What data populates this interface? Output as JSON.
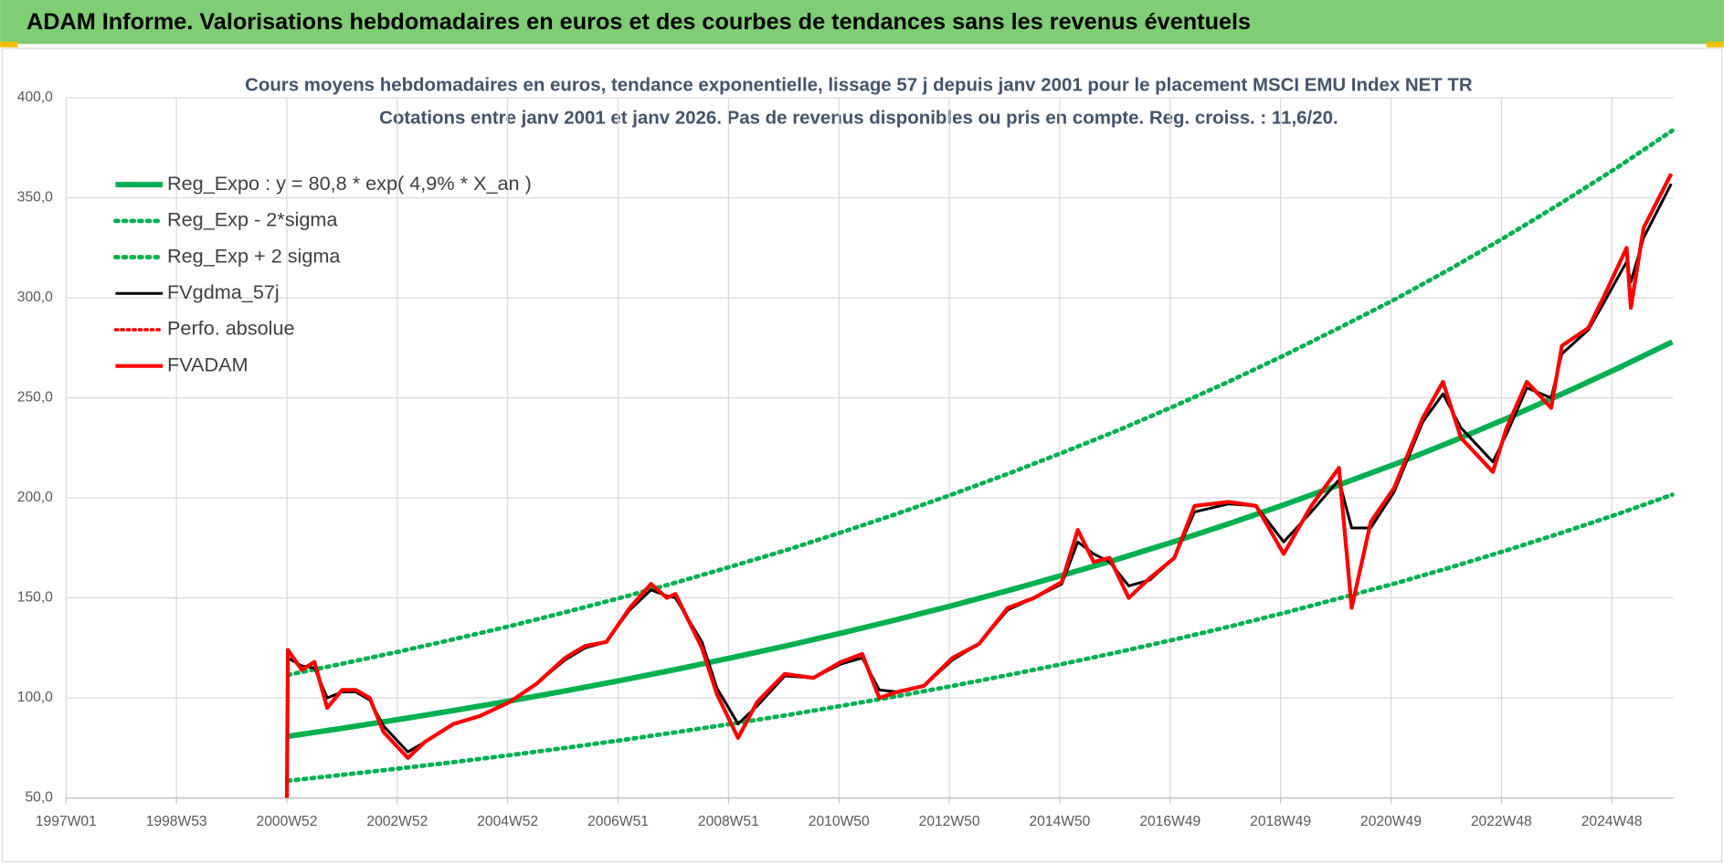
{
  "header": {
    "title": "ADAM Informe. Valorisations hebdomadaires en euros et des courbes de tendances sans les revenus éventuels"
  },
  "chart_data": {
    "type": "line",
    "title": "Cours moyens hebdomadaires en euros, tendance exponentielle, lissage 57 j depuis janv 2001 pour le placement MSCI EMU Index NET TR",
    "subtitle": "Cotations entre janv 2001 et janv 2026. Pas de revenus disponibles ou pris en compte. Reg. croiss. : 11,6/20.",
    "xlim": [
      "1997W01",
      "2026W02"
    ],
    "xticks": [
      "1997W01",
      "1998W53",
      "2000W52",
      "2002W52",
      "2004W52",
      "2006W51",
      "2008W51",
      "2010W50",
      "2012W50",
      "2014W50",
      "2016W49",
      "2018W49",
      "2020W49",
      "2022W48",
      "2024W48"
    ],
    "ylim": [
      50,
      400
    ],
    "yticks": [
      {
        "value": 50,
        "label": "50,0"
      },
      {
        "value": 100,
        "label": "100,0"
      },
      {
        "value": 150,
        "label": "150,0"
      },
      {
        "value": 200,
        "label": "200,0"
      },
      {
        "value": 250,
        "label": "250,0"
      },
      {
        "value": 300,
        "label": "300,0"
      },
      {
        "value": 350,
        "label": "350,0"
      },
      {
        "value": 400,
        "label": "400,0"
      }
    ],
    "grid": true,
    "legend": "upper-left",
    "series": [
      {
        "name": "Reg_Expo : y = 80,8 * exp( 4,9% *  X_an )",
        "color": "#00b050",
        "dash": "solid",
        "width": 5,
        "x": [
          "2001W01",
          "2002W01",
          "2003W01",
          "2004W01",
          "2005W01",
          "2006W01",
          "2007W01",
          "2008W01",
          "2009W01",
          "2010W01",
          "2011W01",
          "2012W01",
          "2013W01",
          "2014W01",
          "2015W01",
          "2016W01",
          "2017W01",
          "2018W01",
          "2019W01",
          "2020W01",
          "2021W01",
          "2022W01",
          "2023W01",
          "2024W01",
          "2025W01",
          "2026W01"
        ],
        "values": [
          80.8,
          84.9,
          89.2,
          93.7,
          98.5,
          103.5,
          108.7,
          114.2,
          120.0,
          126.1,
          132.5,
          139.2,
          146.2,
          153.6,
          161.4,
          169.6,
          178.2,
          187.2,
          196.7,
          206.7,
          217.1,
          228.1,
          239.7,
          251.9,
          264.6,
          278.0
        ]
      },
      {
        "name": "Reg_Exp - 2*sigma",
        "color": "#00b050",
        "dash": "dotted",
        "width": 4,
        "x": [
          "2001W01",
          "2002W01",
          "2003W01",
          "2004W01",
          "2005W01",
          "2006W01",
          "2007W01",
          "2008W01",
          "2009W01",
          "2010W01",
          "2011W01",
          "2012W01",
          "2013W01",
          "2014W01",
          "2015W01",
          "2016W01",
          "2017W01",
          "2018W01",
          "2019W01",
          "2020W01",
          "2021W01",
          "2022W01",
          "2023W01",
          "2024W01",
          "2025W01",
          "2026W01"
        ],
        "values": [
          58.6,
          61.6,
          64.7,
          67.9,
          71.4,
          75.0,
          78.8,
          82.8,
          87.0,
          91.4,
          96.1,
          100.9,
          106.0,
          111.4,
          117.0,
          123.0,
          129.2,
          135.7,
          142.6,
          149.9,
          157.4,
          165.4,
          173.8,
          182.6,
          191.8,
          201.6
        ]
      },
      {
        "name": "Reg_Exp + 2 sigma",
        "color": "#00b050",
        "dash": "dotted",
        "width": 4,
        "x": [
          "2001W01",
          "2002W01",
          "2003W01",
          "2004W01",
          "2005W01",
          "2006W01",
          "2007W01",
          "2008W01",
          "2009W01",
          "2010W01",
          "2011W01",
          "2012W01",
          "2013W01",
          "2014W01",
          "2015W01",
          "2016W01",
          "2017W01",
          "2018W01",
          "2019W01",
          "2020W01",
          "2021W01",
          "2022W01",
          "2023W01",
          "2024W01",
          "2025W01",
          "2026W01"
        ],
        "values": [
          111.5,
          117.2,
          123.1,
          129.3,
          135.9,
          142.8,
          150.0,
          157.6,
          165.6,
          174.0,
          182.9,
          192.1,
          201.8,
          212.0,
          222.7,
          234.0,
          245.9,
          258.3,
          271.4,
          285.2,
          299.6,
          314.8,
          330.8,
          347.6,
          365.1,
          383.6
        ]
      },
      {
        "name": "FVgdma_57j",
        "color": "#000000",
        "dash": "solid",
        "width": 2.5,
        "x": [
          "2001W01",
          "2001W14",
          "2001W26",
          "2001W38",
          "2001W52",
          "2002W13",
          "2002W26",
          "2002W39",
          "2003W10",
          "2003W26",
          "2004W01",
          "2004W26",
          "2005W01",
          "2005W26",
          "2006W01",
          "2006W20",
          "2006W40",
          "2007W10",
          "2007W30",
          "2007W45",
          "2008W01",
          "2008W26",
          "2008W40",
          "2009W08",
          "2009W26",
          "2009W52",
          "2010W26",
          "2010W52",
          "2011W20",
          "2011W36",
          "2012W01",
          "2012W26",
          "2013W01",
          "2013W26",
          "2014W01",
          "2014W26",
          "2014W52",
          "2015W15",
          "2015W30",
          "2015W45",
          "2016W10",
          "2016W30",
          "2017W01",
          "2017W20",
          "2017W52",
          "2018W26",
          "2018W52",
          "2019W26",
          "2019W52",
          "2020W12",
          "2020W30",
          "2020W52",
          "2021W26",
          "2021W45",
          "2022W10",
          "2022W40",
          "2023W01",
          "2023W20",
          "2023W43",
          "2024W01",
          "2024W26",
          "2024W40",
          "2025W10",
          "2025W14",
          "2025W26",
          "2025W52"
        ],
        "values": [
          120,
          116,
          115,
          100,
          103,
          103,
          99,
          86,
          73,
          78,
          87,
          91,
          98,
          107,
          119,
          125,
          128,
          144,
          154,
          151,
          150,
          128,
          105,
          87,
          96,
          111,
          110,
          117,
          120,
          104,
          103,
          106,
          119,
          127,
          144,
          150,
          157,
          178,
          172,
          168,
          156,
          159,
          170,
          193,
          197,
          196,
          178,
          193,
          209,
          185,
          185,
          203,
          238,
          252,
          235,
          218,
          232,
          255,
          250,
          272,
          284,
          297,
          318,
          308,
          330,
          357
        ]
      },
      {
        "name": "Perfo. absolue",
        "color": "#ff0000",
        "dash": "dotted",
        "width": 3
      },
      {
        "name": "FVADAM",
        "color": "#ff0000",
        "dash": "solid",
        "width": 3.5,
        "x": [
          "2000W52",
          "2001W01",
          "2001W14",
          "2001W26",
          "2001W38",
          "2001W52",
          "2002W13",
          "2002W26",
          "2002W39",
          "2003W10",
          "2003W26",
          "2004W01",
          "2004W26",
          "2005W01",
          "2005W26",
          "2006W01",
          "2006W20",
          "2006W40",
          "2007W10",
          "2007W30",
          "2007W45",
          "2008W01",
          "2008W26",
          "2008W40",
          "2009W08",
          "2009W26",
          "2009W52",
          "2010W26",
          "2010W52",
          "2011W20",
          "2011W36",
          "2012W01",
          "2012W26",
          "2013W01",
          "2013W26",
          "2014W01",
          "2014W26",
          "2014W52",
          "2015W15",
          "2015W30",
          "2015W45",
          "2016W10",
          "2016W30",
          "2017W01",
          "2017W20",
          "2017W52",
          "2018W26",
          "2018W52",
          "2019W26",
          "2019W52",
          "2020W12",
          "2020W30",
          "2020W52",
          "2021W26",
          "2021W45",
          "2022W10",
          "2022W40",
          "2023W01",
          "2023W20",
          "2023W43",
          "2024W01",
          "2024W26",
          "2024W40",
          "2025W10",
          "2025W14",
          "2025W26",
          "2025W52"
        ],
        "values": [
          50,
          124,
          114,
          118,
          95,
          104,
          104,
          100,
          83,
          70,
          78,
          87,
          91,
          98,
          107,
          120,
          126,
          128,
          145,
          157,
          150,
          152,
          125,
          102,
          80,
          98,
          112,
          110,
          118,
          122,
          100,
          103,
          106,
          120,
          127,
          145,
          150,
          158,
          184,
          168,
          170,
          150,
          160,
          170,
          196,
          198,
          196,
          172,
          196,
          215,
          145,
          188,
          205,
          240,
          258,
          230,
          213,
          235,
          258,
          245,
          276,
          285,
          300,
          325,
          295,
          335,
          362
        ]
      }
    ]
  }
}
